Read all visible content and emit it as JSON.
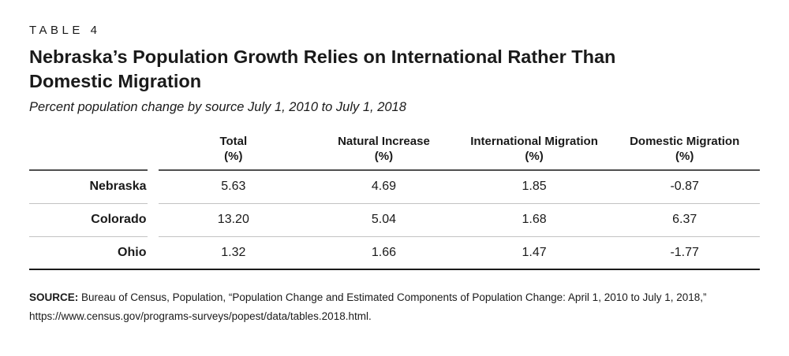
{
  "theme": {
    "text": "#1a1a1a",
    "rule-header": "#4f4f4f",
    "rule-light": "#c3c3c3",
    "rule-heavy": "#1a1a1a",
    "bg": "#ffffff"
  },
  "header": {
    "table_label": "TABLE 4",
    "title": "Nebraska’s Population Growth Relies on International Rather Than Domestic Migration",
    "subtitle": "Percent population change by source July 1, 2010 to July 1, 2018"
  },
  "table": {
    "columns": [
      {
        "label": "Total",
        "unit": "(%)"
      },
      {
        "label": "Natural Increase",
        "unit": "(%)"
      },
      {
        "label": "International Migration",
        "unit": "(%)"
      },
      {
        "label": "Domestic Migration",
        "unit": "(%)"
      }
    ],
    "rows": [
      {
        "region": "Nebraska",
        "values": [
          "5.63",
          "4.69",
          "1.85",
          "-0.87"
        ]
      },
      {
        "region": "Colorado",
        "values": [
          "13.20",
          "5.04",
          "1.68",
          "6.37"
        ]
      },
      {
        "region": "Ohio",
        "values": [
          "1.32",
          "1.66",
          "1.47",
          "-1.77"
        ]
      }
    ]
  },
  "source": {
    "label": "SOURCE:",
    "text": " Bureau of Census, Population, “Population Change and Estimated Components of Population Change: April 1, 2010 to July 1, 2018,” https://www.census.gov/programs-surveys/popest/data/tables.2018.html."
  },
  "chart_data": {
    "type": "table",
    "title": "Nebraska’s Population Growth Relies on International Rather Than Domestic Migration",
    "subtitle": "Percent population change by source July 1, 2010 to July 1, 2018",
    "categories": [
      "Nebraska",
      "Colorado",
      "Ohio"
    ],
    "series": [
      {
        "name": "Total (%)",
        "values": [
          5.63,
          13.2,
          1.32
        ]
      },
      {
        "name": "Natural Increase (%)",
        "values": [
          4.69,
          5.04,
          1.66
        ]
      },
      {
        "name": "International Migration (%)",
        "values": [
          1.85,
          1.68,
          1.47
        ]
      },
      {
        "name": "Domestic Migration (%)",
        "values": [
          -0.87,
          6.37,
          -1.77
        ]
      }
    ]
  }
}
